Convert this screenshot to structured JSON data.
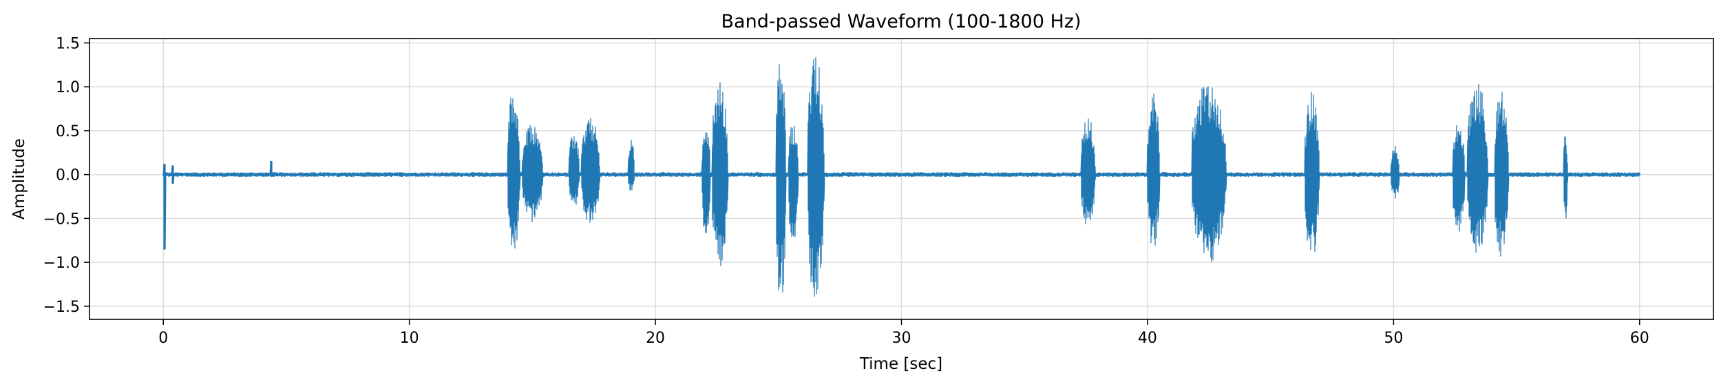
{
  "chart_data": {
    "type": "line",
    "title": "Band-passed Waveform (100-1800 Hz)",
    "xlabel": "Time [sec]",
    "ylabel": "Amplitude",
    "xlim": [
      -3,
      63
    ],
    "ylim": [
      -1.65,
      1.55
    ],
    "x_ticks": [
      0,
      10,
      20,
      30,
      40,
      50,
      60
    ],
    "y_ticks": [
      -1.5,
      -1.0,
      -0.5,
      0.0,
      0.5,
      1.0,
      1.5
    ],
    "x_tick_labels": [
      "0",
      "10",
      "20",
      "30",
      "40",
      "50",
      "60"
    ],
    "y_tick_labels": [
      "−1.5",
      "−1.0",
      "−0.5",
      "0.0",
      "0.5",
      "1.0",
      "1.5"
    ],
    "grid": true,
    "color": "#1f77b4",
    "series": [
      {
        "x_range": [
          0,
          60
        ],
        "baseline_noise": 0.02,
        "spikes": [
          {
            "t": 0.05,
            "max": 0.12,
            "min": -0.85
          },
          {
            "t": 0.4,
            "max": 0.1,
            "min": -0.1
          },
          {
            "t": 4.4,
            "max": 0.15,
            "min": -0.02
          }
        ],
        "bursts": [
          {
            "start": 14.0,
            "end": 14.6,
            "max": 1.0,
            "min": -0.92
          },
          {
            "start": 14.6,
            "end": 15.6,
            "max": 0.58,
            "min": -0.55
          },
          {
            "start": 16.5,
            "end": 17.0,
            "max": 0.5,
            "min": -0.38
          },
          {
            "start": 17.0,
            "end": 17.9,
            "max": 0.66,
            "min": -0.58
          },
          {
            "start": 18.9,
            "end": 19.2,
            "max": 0.44,
            "min": -0.2
          },
          {
            "start": 21.9,
            "end": 22.3,
            "max": 0.62,
            "min": -0.75
          },
          {
            "start": 22.3,
            "end": 23.1,
            "max": 1.06,
            "min": -1.05
          },
          {
            "start": 24.9,
            "end": 25.4,
            "max": 1.32,
            "min": -1.48
          },
          {
            "start": 25.4,
            "end": 25.9,
            "max": 0.6,
            "min": -0.78
          },
          {
            "start": 26.2,
            "end": 27.0,
            "max": 1.38,
            "min": -1.5
          },
          {
            "start": 37.3,
            "end": 38.0,
            "max": 0.68,
            "min": -0.6
          },
          {
            "start": 40.0,
            "end": 40.6,
            "max": 0.95,
            "min": -0.85
          },
          {
            "start": 41.8,
            "end": 43.5,
            "max": 1.05,
            "min": -1.02
          },
          {
            "start": 46.4,
            "end": 47.1,
            "max": 0.95,
            "min": -0.98
          },
          {
            "start": 49.9,
            "end": 50.3,
            "max": 0.35,
            "min": -0.3
          },
          {
            "start": 52.4,
            "end": 53.0,
            "max": 0.62,
            "min": -0.7
          },
          {
            "start": 53.0,
            "end": 54.0,
            "max": 1.08,
            "min": -0.95
          },
          {
            "start": 54.1,
            "end": 54.8,
            "max": 1.0,
            "min": -0.95
          },
          {
            "start": 56.9,
            "end": 57.1,
            "max": 0.55,
            "min": -0.6
          }
        ]
      }
    ]
  }
}
